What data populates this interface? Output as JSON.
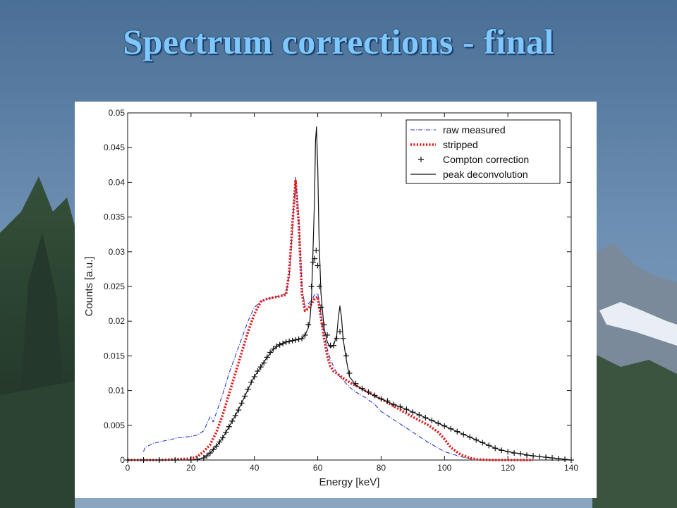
{
  "slide": {
    "title": "Spectrum corrections - final",
    "accent_color": "#7ec8ff"
  },
  "chart_data": {
    "type": "line",
    "title": "",
    "xlabel": "Energy [keV]",
    "ylabel": "Counts [a.u.]",
    "xlim": [
      0,
      140
    ],
    "ylim": [
      0,
      0.05
    ],
    "xticks": [
      0,
      20,
      40,
      60,
      80,
      100,
      120,
      140
    ],
    "xtick_labels": [
      "0",
      "20",
      "40",
      "60",
      "80",
      "100",
      "120",
      "140"
    ],
    "yticks": [
      0,
      0.005,
      0.01,
      0.015,
      0.02,
      0.025,
      0.03,
      0.035,
      0.04,
      0.045,
      0.05
    ],
    "ytick_labels": [
      "0",
      "0.005",
      "0.01",
      "0.015",
      "0.02",
      "0.025",
      "0.03",
      "0.035",
      "0.04",
      "0.045",
      "0.05"
    ],
    "grid": false,
    "legend_position": "top-right",
    "series": [
      {
        "name": "raw measured",
        "style": "dash-dot",
        "color": "#2233cc",
        "x": [
          5,
          5.5,
          8,
          12,
          16,
          20,
          22,
          24,
          25,
          26,
          27,
          28,
          30,
          32,
          34,
          36,
          38,
          40,
          42,
          44,
          46,
          48,
          50,
          51,
          52,
          53,
          54,
          55,
          56,
          57,
          58,
          59,
          60,
          61,
          62,
          63,
          64,
          65,
          66,
          68,
          70,
          72,
          75,
          78,
          80,
          85,
          90,
          95,
          100,
          105,
          108,
          110
        ],
        "y": [
          0.0012,
          0.0018,
          0.0024,
          0.0028,
          0.0032,
          0.0034,
          0.0036,
          0.0042,
          0.0052,
          0.0062,
          0.0055,
          0.0068,
          0.0095,
          0.0125,
          0.015,
          0.0175,
          0.02,
          0.022,
          0.0228,
          0.0232,
          0.0234,
          0.0236,
          0.024,
          0.0265,
          0.033,
          0.0408,
          0.035,
          0.025,
          0.022,
          0.0225,
          0.023,
          0.0238,
          0.024,
          0.021,
          0.018,
          0.016,
          0.0145,
          0.0135,
          0.0125,
          0.0115,
          0.0105,
          0.0098,
          0.009,
          0.008,
          0.007,
          0.0055,
          0.004,
          0.0025,
          0.0012,
          0.0005,
          0.0002,
          0
        ]
      },
      {
        "name": "stripped",
        "style": "dotted",
        "color": "#e21a1a",
        "x": [
          0,
          10,
          20,
          22,
          24,
          26,
          28,
          30,
          32,
          34,
          36,
          38,
          40,
          42,
          44,
          46,
          48,
          50,
          51,
          52,
          53,
          54,
          55,
          56,
          57,
          58,
          59,
          60,
          61,
          62,
          63,
          64,
          65,
          66,
          68,
          70,
          75,
          80,
          85,
          90,
          95,
          98,
          100,
          102,
          105,
          108,
          110,
          115,
          120,
          125,
          128
        ],
        "y": [
          0,
          0,
          0.0002,
          0.0005,
          0.0012,
          0.0022,
          0.004,
          0.0065,
          0.0095,
          0.0125,
          0.0155,
          0.0185,
          0.021,
          0.0228,
          0.0232,
          0.0234,
          0.0236,
          0.0238,
          0.027,
          0.034,
          0.0402,
          0.034,
          0.024,
          0.0215,
          0.0218,
          0.0225,
          0.0232,
          0.0235,
          0.0205,
          0.0175,
          0.015,
          0.0135,
          0.0128,
          0.0125,
          0.0118,
          0.0112,
          0.01,
          0.0088,
          0.0075,
          0.0062,
          0.005,
          0.004,
          0.003,
          0.0018,
          0.0008,
          0.0003,
          0.0001,
          0,
          0,
          0,
          0
        ]
      },
      {
        "name": "Compton correction",
        "style": "plus-markers",
        "color": "#111111",
        "x": [
          0,
          5,
          10,
          15,
          20,
          22,
          24,
          25,
          26,
          27,
          28,
          29,
          30,
          31,
          32,
          33,
          34,
          35,
          36,
          37,
          38,
          39,
          40,
          41,
          42,
          43,
          44,
          45,
          46,
          47,
          48,
          49,
          50,
          51,
          52,
          53,
          54,
          55,
          56,
          57,
          58,
          58.5,
          59,
          59.5,
          60,
          60.5,
          61,
          62,
          63,
          64,
          65,
          66,
          67,
          68,
          69,
          70,
          72,
          74,
          76,
          78,
          80,
          82,
          84,
          86,
          88,
          90,
          92,
          94,
          96,
          98,
          100,
          102,
          104,
          106,
          108,
          110,
          112,
          114,
          116,
          118,
          120,
          122,
          124,
          126,
          128,
          130,
          132,
          134,
          136,
          138,
          140
        ],
        "y": [
          0,
          0,
          0,
          0,
          0,
          0.0001,
          0.0003,
          0.0006,
          0.001,
          0.0015,
          0.002,
          0.0026,
          0.0032,
          0.004,
          0.0048,
          0.0056,
          0.0064,
          0.0072,
          0.0082,
          0.0092,
          0.0102,
          0.0112,
          0.012,
          0.0128,
          0.0134,
          0.014,
          0.0148,
          0.0155,
          0.016,
          0.0164,
          0.0166,
          0.0168,
          0.017,
          0.0171,
          0.0172,
          0.0173,
          0.0174,
          0.0175,
          0.018,
          0.0195,
          0.025,
          0.0285,
          0.029,
          0.0302,
          0.028,
          0.025,
          0.022,
          0.0195,
          0.018,
          0.0165,
          0.0165,
          0.0175,
          0.0185,
          0.0175,
          0.015,
          0.0125,
          0.011,
          0.0103,
          0.0098,
          0.0093,
          0.0088,
          0.0085,
          0.008,
          0.0077,
          0.0073,
          0.0069,
          0.0065,
          0.0061,
          0.0057,
          0.0053,
          0.0049,
          0.0045,
          0.0041,
          0.0037,
          0.0033,
          0.0029,
          0.0025,
          0.0021,
          0.0017,
          0.0014,
          0.0012,
          0.001,
          0.0009,
          0.0007,
          0.0006,
          0.0005,
          0.0004,
          0.0003,
          0.0002,
          0.0001,
          0
        ]
      },
      {
        "name": "peak deconvolution",
        "style": "solid",
        "color": "#111111",
        "x": [
          0,
          10,
          20,
          22,
          24,
          26,
          28,
          30,
          32,
          34,
          36,
          38,
          40,
          42,
          44,
          46,
          48,
          50,
          52,
          54,
          55,
          56,
          57,
          57.5,
          58,
          58.5,
          59,
          59.3,
          59.6,
          60,
          60.4,
          61,
          62,
          63,
          64,
          65,
          66,
          66.5,
          67,
          67.5,
          68,
          69,
          70,
          72,
          74,
          76,
          78,
          80,
          84,
          88,
          92,
          96,
          100,
          104,
          108,
          112,
          116,
          120,
          124,
          128,
          132,
          136,
          140
        ],
        "y": [
          0,
          0,
          0,
          0.0001,
          0.0003,
          0.001,
          0.002,
          0.0032,
          0.0048,
          0.0064,
          0.0082,
          0.0102,
          0.012,
          0.0134,
          0.0148,
          0.016,
          0.0166,
          0.017,
          0.0172,
          0.0174,
          0.0175,
          0.018,
          0.019,
          0.02,
          0.023,
          0.03,
          0.038,
          0.046,
          0.048,
          0.042,
          0.032,
          0.024,
          0.019,
          0.017,
          0.0162,
          0.0165,
          0.018,
          0.0205,
          0.0222,
          0.0205,
          0.0175,
          0.0145,
          0.012,
          0.0108,
          0.0102,
          0.0097,
          0.0092,
          0.0088,
          0.008,
          0.0073,
          0.0065,
          0.0057,
          0.0049,
          0.0041,
          0.0033,
          0.0025,
          0.0017,
          0.0012,
          0.0009,
          0.0006,
          0.0004,
          0.0002,
          0
        ]
      }
    ]
  }
}
